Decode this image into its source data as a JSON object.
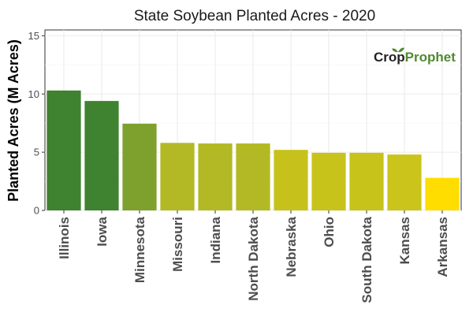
{
  "chart_data": {
    "type": "bar",
    "title": "State Soybean Planted Acres - 2020",
    "xlabel": "",
    "ylabel": "Planted Acres (M Acres)",
    "ylim": [
      0,
      15.5
    ],
    "yticks": [
      0,
      5,
      10,
      15
    ],
    "grid": true,
    "legend": "none",
    "categories": [
      "Illinois",
      "Iowa",
      "Minnesota",
      "Missouri",
      "Indiana",
      "North Dakota",
      "Nebraska",
      "Ohio",
      "South Dakota",
      "Kansas",
      "Arkansas"
    ],
    "values": [
      10.3,
      9.4,
      7.45,
      5.8,
      5.75,
      5.75,
      5.2,
      4.95,
      4.95,
      4.8,
      2.8
    ],
    "bar_colors": [
      "#3f8230",
      "#3f8230",
      "#7ea12e",
      "#b3b924",
      "#b3b924",
      "#b3b924",
      "#c6c21b",
      "#c8c31a",
      "#c8c31a",
      "#cbc41a",
      "#ffdd00"
    ]
  },
  "logo": {
    "text_prefix": "Crop",
    "text_suffix": "Prophet",
    "prefix_color": "#222222",
    "suffix_color": "#4e8a2f"
  }
}
